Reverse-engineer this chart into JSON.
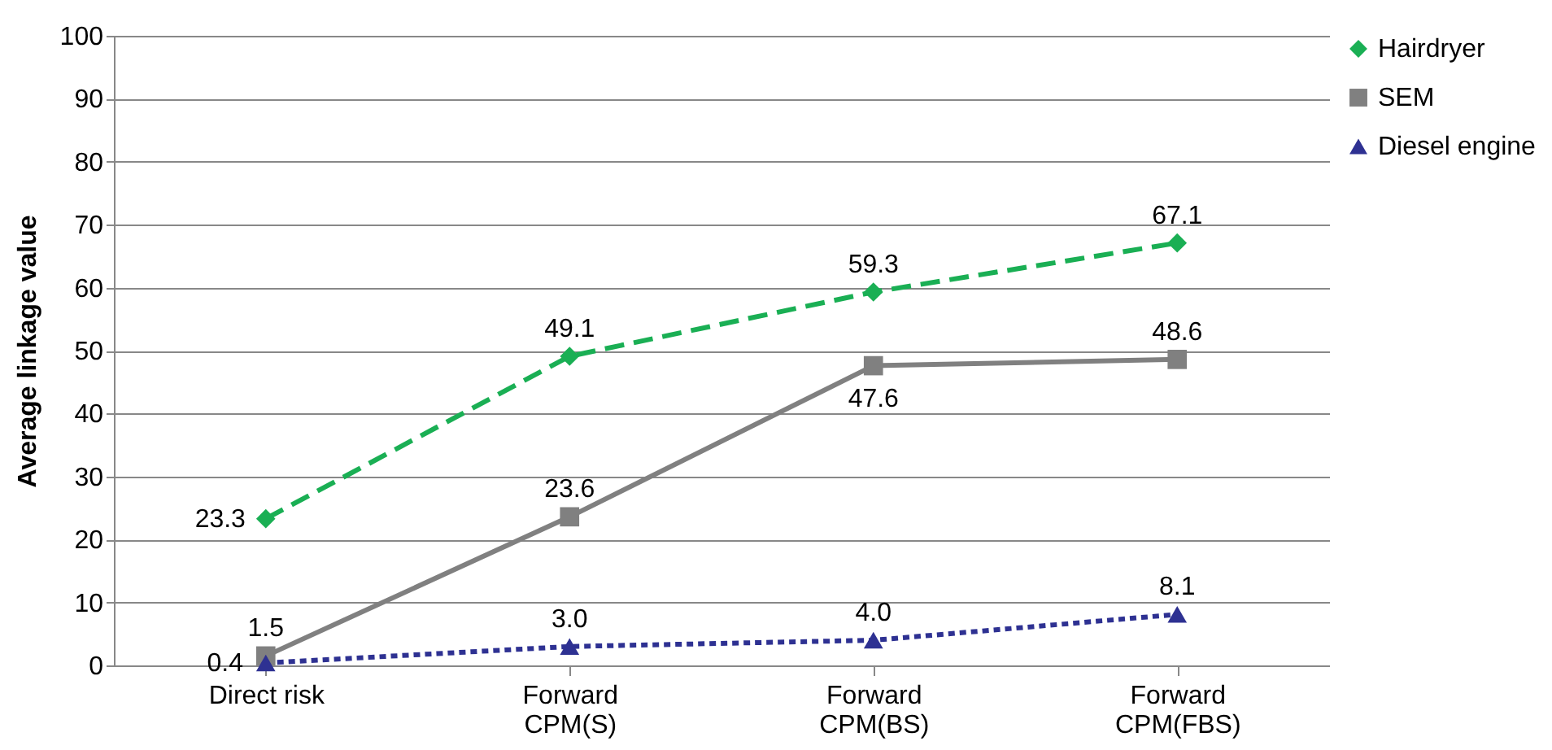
{
  "chart_data": {
    "type": "line",
    "ylabel": "Average linkage value",
    "categories": [
      "Direct risk",
      "Forward\nCPM(S)",
      "Forward\nCPM(BS)",
      "Forward\nCPM(FBS)"
    ],
    "ylim": [
      0,
      100
    ],
    "yticks": [
      0,
      10,
      20,
      30,
      40,
      50,
      60,
      70,
      80,
      90,
      100
    ],
    "grid": "y",
    "legend": "right",
    "series": [
      {
        "name": "Hairdryer",
        "color": "#1aaf54",
        "marker": "diamond",
        "line_style": "dashed",
        "values": [
          23.3,
          49.1,
          59.3,
          67.1
        ],
        "value_labels": [
          "23.3",
          "49.1",
          "59.3",
          "67.1"
        ]
      },
      {
        "name": "SEM",
        "color": "#808080",
        "marker": "square",
        "line_style": "solid",
        "values": [
          1.5,
          23.6,
          47.6,
          48.6
        ],
        "value_labels": [
          "1.5",
          "23.6",
          "47.6",
          "48.6"
        ]
      },
      {
        "name": "Diesel engine",
        "color": "#2e3192",
        "marker": "triangle",
        "line_style": "dotted",
        "values": [
          0.4,
          3.0,
          4.0,
          8.1
        ],
        "value_labels": [
          "0.4",
          "3.0",
          "4.0",
          "8.1"
        ]
      }
    ]
  }
}
